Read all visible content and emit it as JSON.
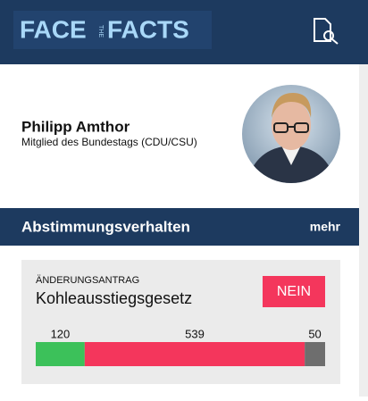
{
  "header": {
    "logo": [
      "FACE",
      "THE",
      "FACTS"
    ]
  },
  "profile": {
    "name": "Philipp Amthor",
    "role": "Mitglied des Bundestags (CDU/CSU)"
  },
  "section": {
    "title": "Abstimmungsverhalten",
    "more": "mehr"
  },
  "vote": {
    "kind": "ÄNDERUNGSANTRAG",
    "title": "Kohleausstiegsgesetz",
    "result": "NEIN",
    "counts": {
      "values": [
        120,
        539,
        50
      ],
      "colors": [
        "#3cc15a",
        "#f4365c",
        "#6e6e6e"
      ]
    }
  }
}
